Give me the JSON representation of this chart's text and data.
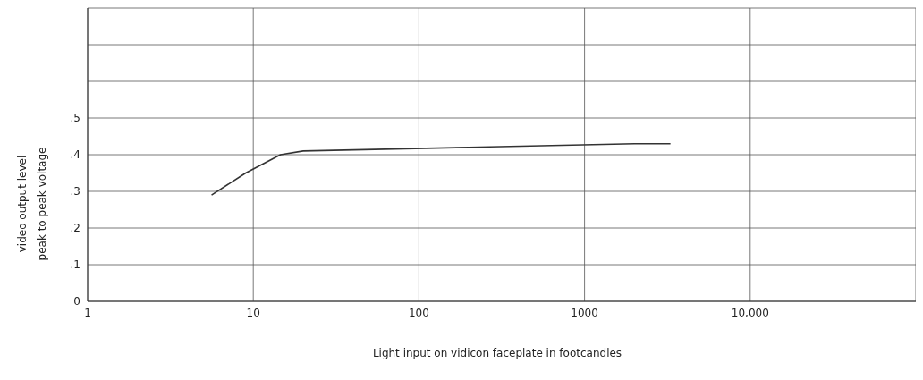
{
  "chart_data": {
    "type": "line",
    "xlabel": "Light input on vidicon faceplate in footcandles",
    "ylabel": "video output level\npeak to peak voltage",
    "log": "x",
    "grid": true,
    "marker": "none",
    "line_style": "solid",
    "xlim": [
      1,
      100000
    ],
    "xticks": [
      1,
      10,
      100,
      1000,
      {
        "value": 10000,
        "label": "10,000"
      },
      {
        "value": 100000,
        "label": null
      }
    ],
    "ylim": [
      0,
      0.8
    ],
    "yticks": [
      0,
      {
        "value": 0.1,
        "label": ".1"
      },
      {
        "value": 0.2,
        "label": ".2"
      },
      {
        "value": 0.3,
        "label": ".3"
      },
      {
        "value": 0.4,
        "label": ".4"
      },
      {
        "value": 0.5,
        "label": ".5"
      },
      {
        "value": 0.6,
        "label": null
      },
      {
        "value": 0.7,
        "label": null
      }
    ],
    "series": [
      {
        "color": "#333333",
        "x": [
          5.6,
          9,
          14.6,
          20,
          200,
          2000,
          3300
        ],
        "values": [
          0.29,
          0.35,
          0.4,
          0.41,
          0.42,
          0.43,
          0.43
        ]
      }
    ]
  }
}
